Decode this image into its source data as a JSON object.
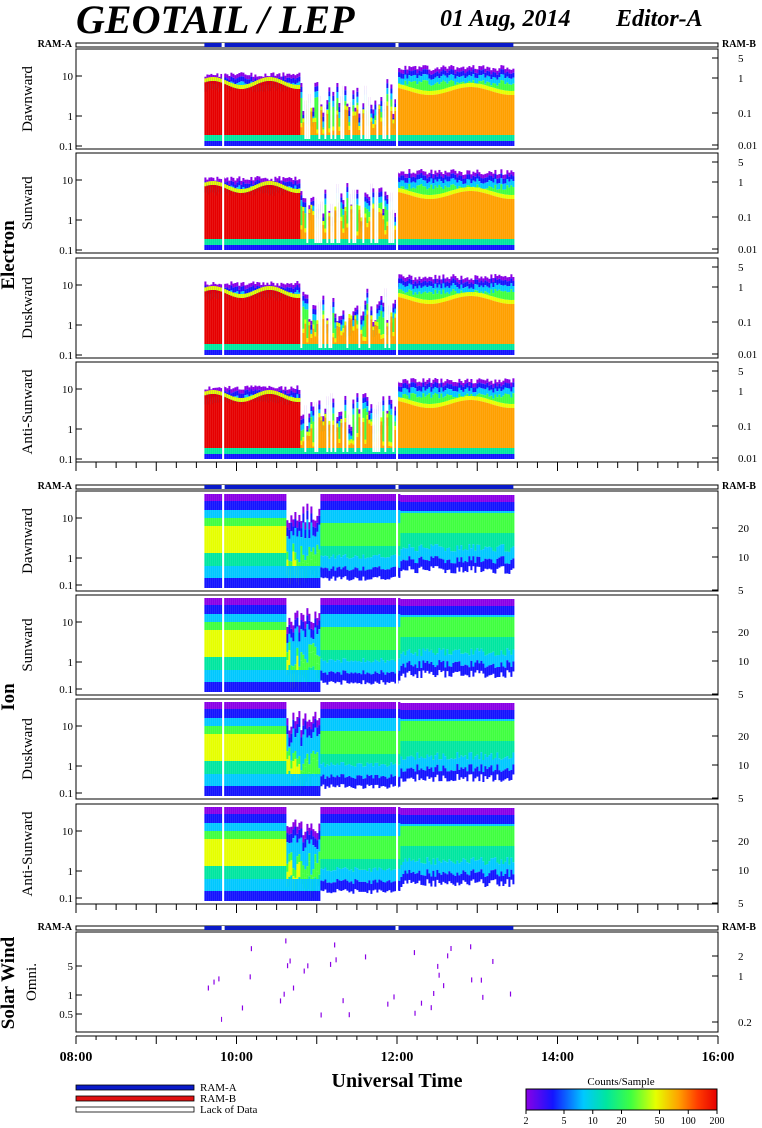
{
  "header": {
    "title": "GEOTAIL / LEP",
    "date": "01 Aug, 2014",
    "editor": "Editor-A"
  },
  "colors": {
    "ram_a": "#0a1ac8",
    "ram_b": "#e01010",
    "colorscale": [
      "#8a00e6",
      "#1414ff",
      "#00c8ff",
      "#00e6a0",
      "#40ff40",
      "#e6ff00",
      "#ffa000",
      "#ff3c00",
      "#e60000"
    ]
  },
  "chart_data": {
    "type": "heatmap",
    "xlabel": "Universal Time",
    "xticks": [
      "08:00",
      "10:00",
      "12:00",
      "14:00",
      "16:00"
    ],
    "x_range": [
      "08:00",
      "16:00"
    ],
    "data_coverage": [
      "09:36",
      "13:27"
    ],
    "data_gaps": [
      "09:50",
      "12:00"
    ],
    "groups": [
      {
        "name": "Electron",
        "ram_left": "RAM-A",
        "ram_right": "RAM-B",
        "kind": "electron",
        "yticks_left": [
          "10",
          "1",
          "0.1"
        ],
        "yticks_right": [
          "5",
          "1",
          "0.1",
          "0.01"
        ],
        "panels": [
          {
            "label": "Dawnward"
          },
          {
            "label": "Sunward"
          },
          {
            "label": "Duskward"
          },
          {
            "label": "Anti-Sunward"
          }
        ]
      },
      {
        "name": "Ion",
        "ram_left": "RAM-A",
        "ram_right": "RAM-B",
        "kind": "ion",
        "yticks_left": [
          "10",
          "1",
          "0.1"
        ],
        "yticks_right": [
          "20",
          "10",
          "5"
        ],
        "panels": [
          {
            "label": "Dawnward"
          },
          {
            "label": "Sunward"
          },
          {
            "label": "Duskward"
          },
          {
            "label": "Anti-Sunward"
          }
        ]
      },
      {
        "name": "Solar Wind",
        "ram_left": "RAM-A",
        "ram_right": "RAM-B",
        "kind": "solarwind",
        "yticks_left": [
          "5",
          "1",
          "0.5"
        ],
        "yticks_right": [
          "2",
          "1",
          "0.2"
        ],
        "panels": [
          {
            "label": "Omni."
          }
        ]
      }
    ],
    "legend": [
      {
        "label": "RAM-A",
        "color": "#0a1ac8"
      },
      {
        "label": "RAM-B",
        "color": "#e01010"
      },
      {
        "label": "Lack of Data",
        "color": "#ffffff"
      }
    ],
    "colorbar": {
      "title": "Counts/Sample",
      "ticks": [
        "2",
        "5",
        "10",
        "20",
        "50",
        "100",
        "200"
      ],
      "range": [
        2,
        200
      ],
      "scale": "log"
    }
  }
}
